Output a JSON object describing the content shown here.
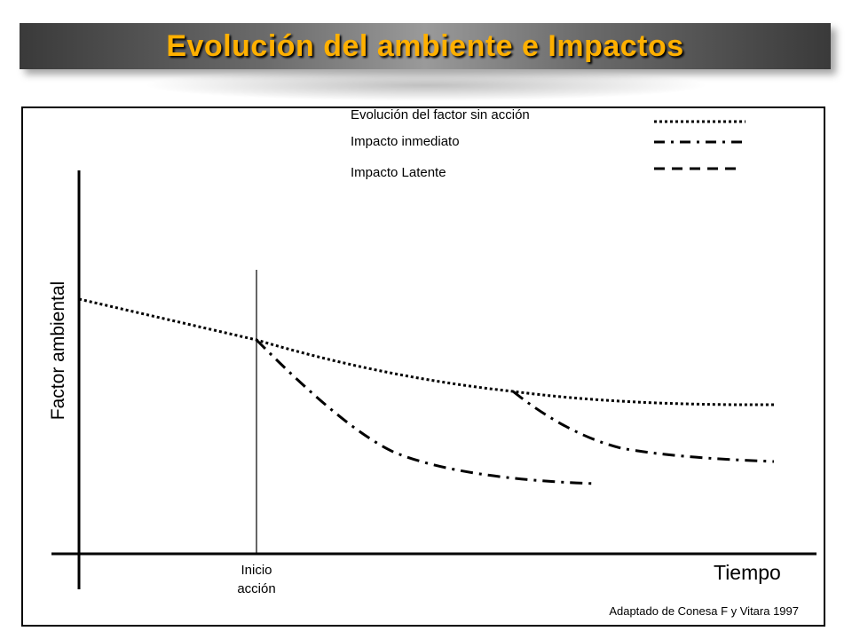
{
  "title": "Evolución del ambiente e Impactos",
  "colors": {
    "title_text": "#ffb000",
    "lines": "#000000"
  },
  "legend": [
    {
      "label": "Evolución del factor sin acción",
      "style": "dotted"
    },
    {
      "label": "Impacto inmediato",
      "style": "dash-dot"
    },
    {
      "label": "Impacto Latente",
      "style": "dashed"
    }
  ],
  "axes": {
    "y_label": "Factor  ambiental",
    "x_label": "Tiempo"
  },
  "marker": {
    "line1": "Inicio",
    "line2": "acción"
  },
  "source": "Adaptado de Conesa F y Vitara 1997"
}
